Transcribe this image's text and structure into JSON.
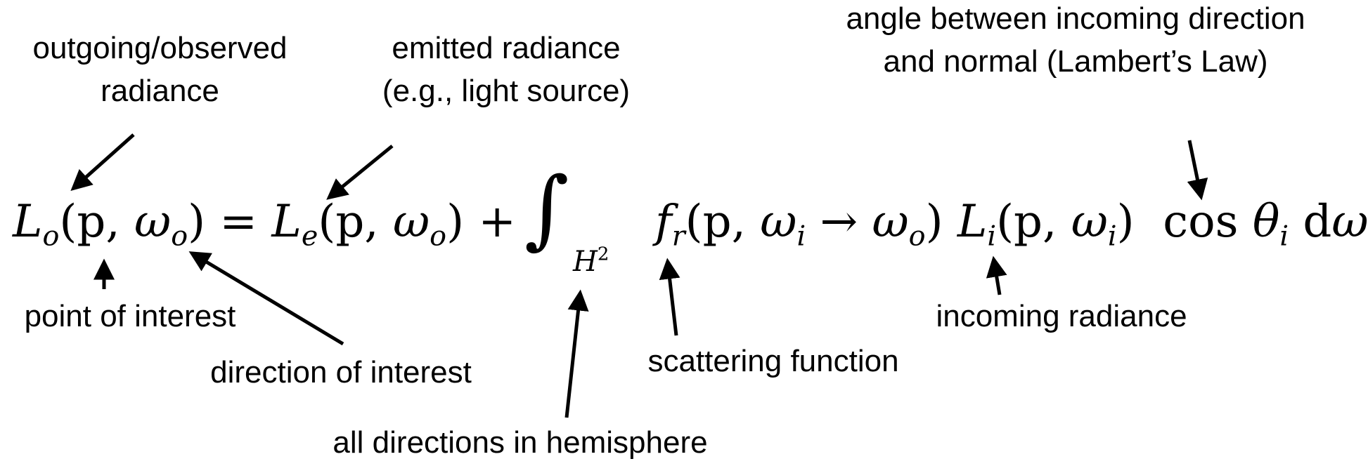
{
  "annotations": {
    "outgoing": [
      "outgoing/observed",
      "radiance"
    ],
    "emitted": [
      "emitted radiance",
      "(e.g., light source)"
    ],
    "angle": [
      "angle between incoming direction",
      "and normal (Lambert’s Law)"
    ],
    "point": "point of interest",
    "direction": "direction of interest",
    "hemisphere": "all directions in hemisphere",
    "scattering": "scattering function",
    "incoming": "incoming radiance"
  },
  "equation": {
    "L": "L",
    "o": "o",
    "e": "e",
    "i": "i",
    "r": "r",
    "f": "f",
    "p": "p",
    "omega": "ω",
    "theta": "θ",
    "comma": ", ",
    "lparen": "(",
    "rparen": ")",
    "equals": " = ",
    "plus": " + ",
    "arrow": " → ",
    "cos": "cos",
    "d": "d",
    "integral": "∫",
    "H": "H",
    "two": "2"
  }
}
